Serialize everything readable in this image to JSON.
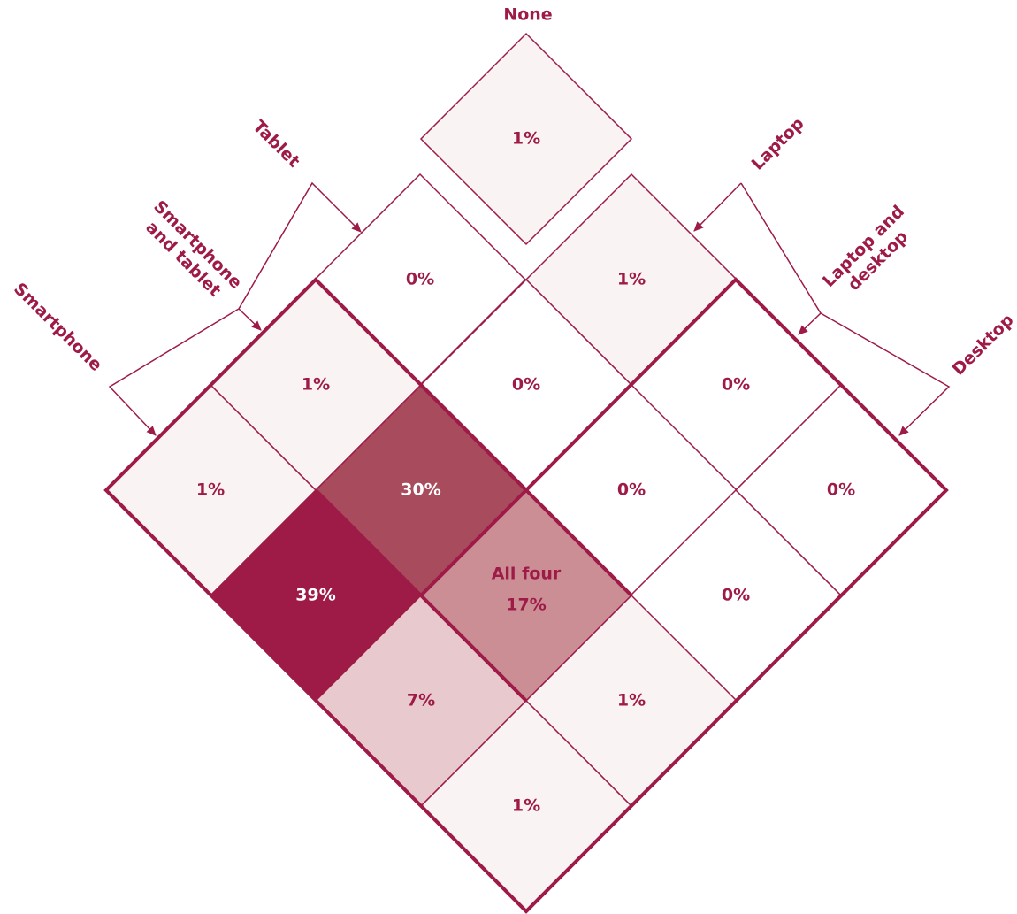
{
  "groups": [
    {
      "lines": [
        "None"
      ]
    },
    {
      "lines": [
        "Tablet"
      ]
    },
    {
      "lines": [
        "Smartphone",
        "and tablet"
      ]
    },
    {
      "lines": [
        "Smartphone"
      ]
    },
    {
      "lines": [
        "Laptop"
      ]
    },
    {
      "lines": [
        "Laptop and",
        "desktop"
      ]
    },
    {
      "lines": [
        "Desktop"
      ]
    }
  ],
  "cells": [
    {
      "text": "1%",
      "color": "#f9f3f3"
    },
    {
      "text": "0%",
      "color": "#ffffff"
    },
    {
      "text": "1%",
      "color": "#f9f3f3"
    },
    {
      "text": "1%",
      "color": "#f9f3f3"
    },
    {
      "text": "0%",
      "color": "#ffffff"
    },
    {
      "text": "0%",
      "color": "#ffffff"
    },
    {
      "text": "1%",
      "color": "#f9f3f3"
    },
    {
      "text": "30%",
      "color": "#a84b5d"
    },
    {
      "text": "0%",
      "color": "#ffffff"
    },
    {
      "text": "0%",
      "color": "#ffffff"
    },
    {
      "text": "39%",
      "color": "#9e1a47"
    },
    {
      "caption": "All four",
      "text": "17%",
      "color": "#cc8e95"
    },
    {
      "text": "0%",
      "color": "#ffffff"
    },
    {
      "text": "7%",
      "color": "#e8c9cd"
    },
    {
      "text": "1%",
      "color": "#f9f3f3"
    },
    {
      "text": "1%",
      "color": "#f9f3f3"
    }
  ]
}
